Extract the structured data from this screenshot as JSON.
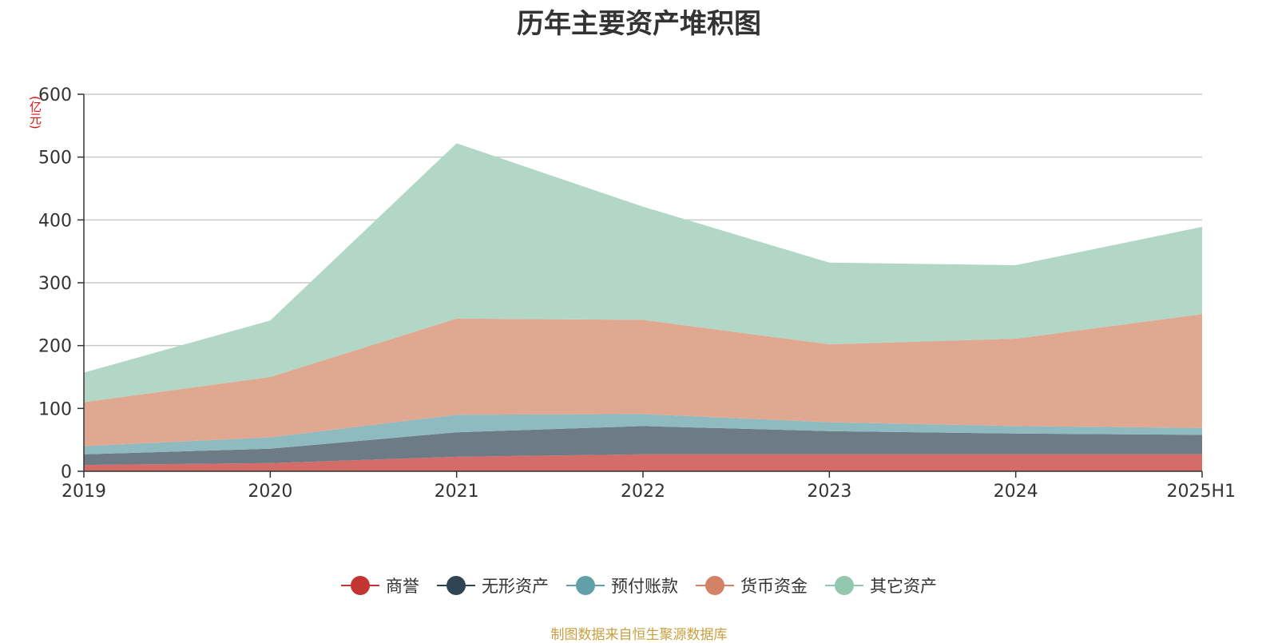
{
  "chart_data": {
    "type": "area",
    "stacked": true,
    "title": "历年主要资产堆积图",
    "unit_label": "(亿元)",
    "x": [
      "2019",
      "2020",
      "2021",
      "2022",
      "2023",
      "2024",
      "2025H1"
    ],
    "ylim": [
      0,
      600
    ],
    "yticks": [
      "0",
      "100",
      "200",
      "300",
      "400",
      "500",
      "600"
    ],
    "grid": true,
    "legend_position": "bottom",
    "series": [
      {
        "name": "商誉",
        "color": "#c23531",
        "area_color": "#d46d6a",
        "values": [
          10,
          13,
          23,
          27,
          27,
          27,
          27
        ]
      },
      {
        "name": "无形资产",
        "color": "#2f4554",
        "area_color": "#6d7b86",
        "values": [
          17,
          23,
          39,
          45,
          37,
          33,
          31
        ]
      },
      {
        "name": "预付账款",
        "color": "#61a0a8",
        "area_color": "#8fbbc0",
        "values": [
          13,
          18,
          28,
          19,
          14,
          12,
          11
        ]
      },
      {
        "name": "货币资金",
        "color": "#d48265",
        "area_color": "#e0a791",
        "values": [
          70,
          96,
          153,
          150,
          124,
          139,
          181
        ]
      },
      {
        "name": "其它资产",
        "color": "#91c7ae",
        "area_color": "#b2d7c6",
        "values": [
          47,
          90,
          279,
          180,
          130,
          117,
          139
        ]
      }
    ]
  },
  "footer": {
    "source": "制图数据来自恒生聚源数据库"
  }
}
